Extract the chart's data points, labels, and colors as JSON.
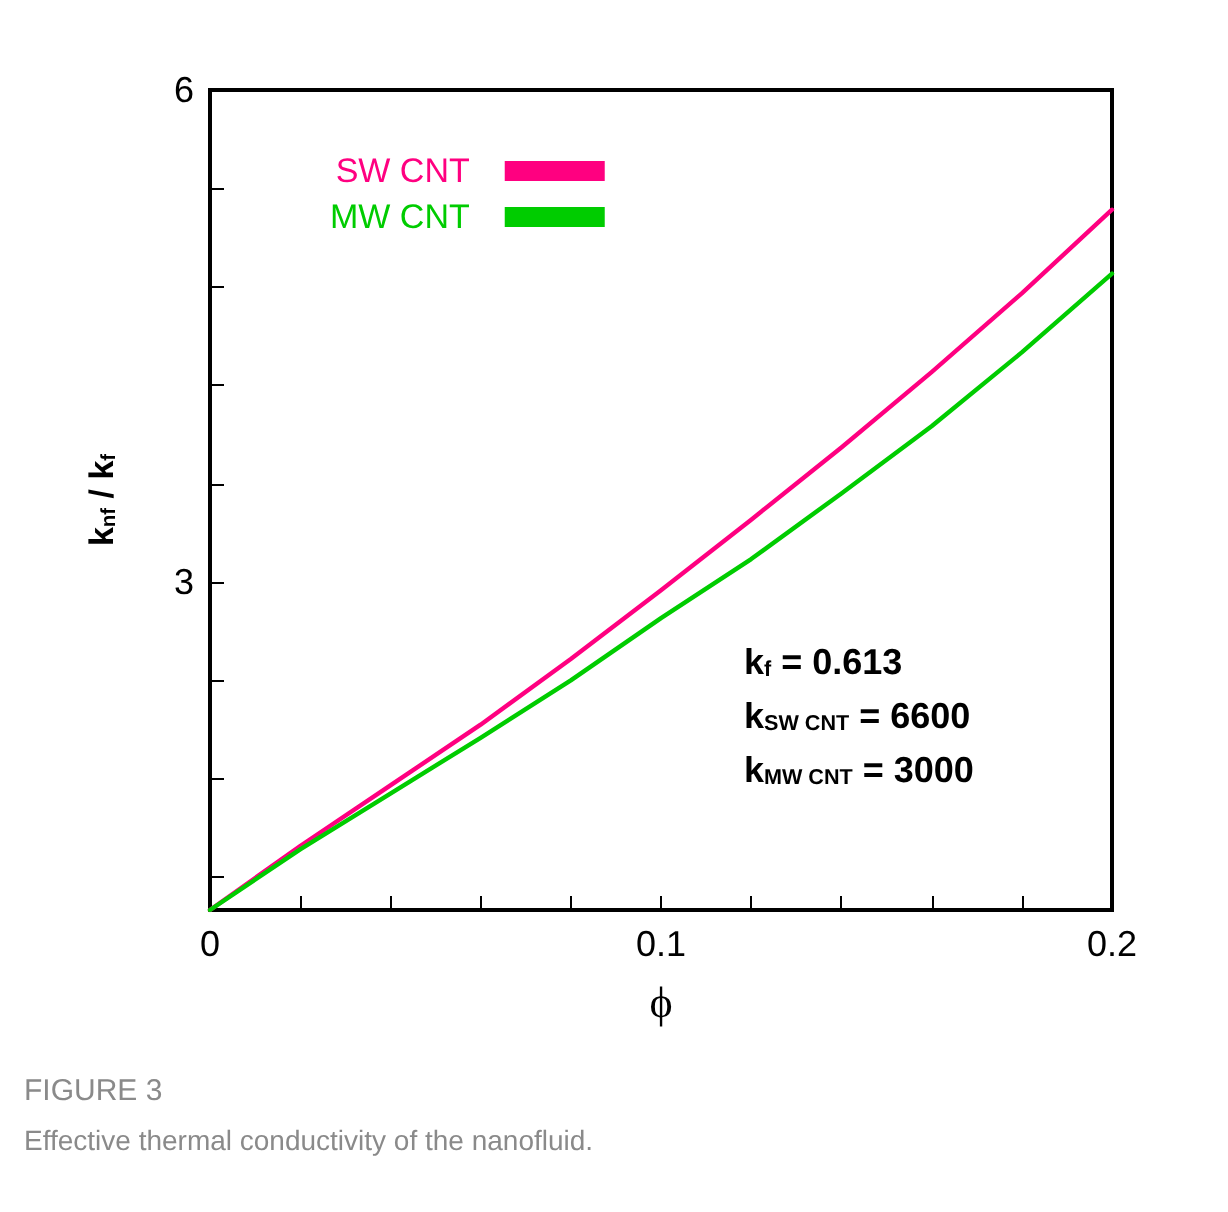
{
  "chart_data": {
    "type": "line",
    "title": "FIGURE 3",
    "subtitle": "Effective thermal conductivity of the nanofluid.",
    "xlabel": "ϕ",
    "ylabel": "k$_{nf}$ / k$_{f}$",
    "x": [
      0,
      0.02,
      0.04,
      0.06,
      0.08,
      0.1,
      0.12,
      0.14,
      0.16,
      0.18,
      0.2
    ],
    "series": [
      {
        "name": "SW CNT",
        "color": "#ff0080",
        "values": [
          1,
          1.39,
          1.76,
          2.13,
          2.53,
          2.95,
          3.38,
          3.82,
          4.28,
          4.76,
          5.27
        ]
      },
      {
        "name": "MW CNT",
        "color": "#00cc00",
        "values": [
          1,
          1.37,
          1.71,
          2.05,
          2.4,
          2.78,
          3.14,
          3.54,
          3.95,
          4.4,
          4.88
        ]
      }
    ],
    "xlim": [
      0,
      0.2
    ],
    "xticks": [
      0,
      {
        "value": 0.02,
        "label": null
      },
      {
        "value": 0.04,
        "label": null
      },
      {
        "value": 0.06,
        "label": null
      },
      {
        "value": 0.08,
        "label": null
      },
      0.1,
      {
        "value": 0.12,
        "label": null
      },
      {
        "value": 0.14,
        "label": null
      },
      {
        "value": 0.16,
        "label": null
      },
      {
        "value": 0.18,
        "label": null
      },
      0.2
    ],
    "ylim": [
      1,
      6
    ],
    "yticks": [
      {
        "value": 1.2,
        "label": null
      },
      {
        "value": 1.8,
        "label": null
      },
      {
        "value": 2.4,
        "label": null
      },
      3,
      {
        "value": 3.6,
        "label": null
      },
      {
        "value": 4.2,
        "label": null
      },
      {
        "value": 4.8,
        "label": null
      },
      {
        "value": 5.4,
        "label": null
      },
      6
    ],
    "annotations": [
      "k$_{f}$ = 0.613",
      "k$_{SW CNT}$ = 6600",
      "k$_{MW CNT}$ = 3000"
    ],
    "legend": "top left",
    "marker": "none",
    "line_style": "solid",
    "grid": false
  }
}
